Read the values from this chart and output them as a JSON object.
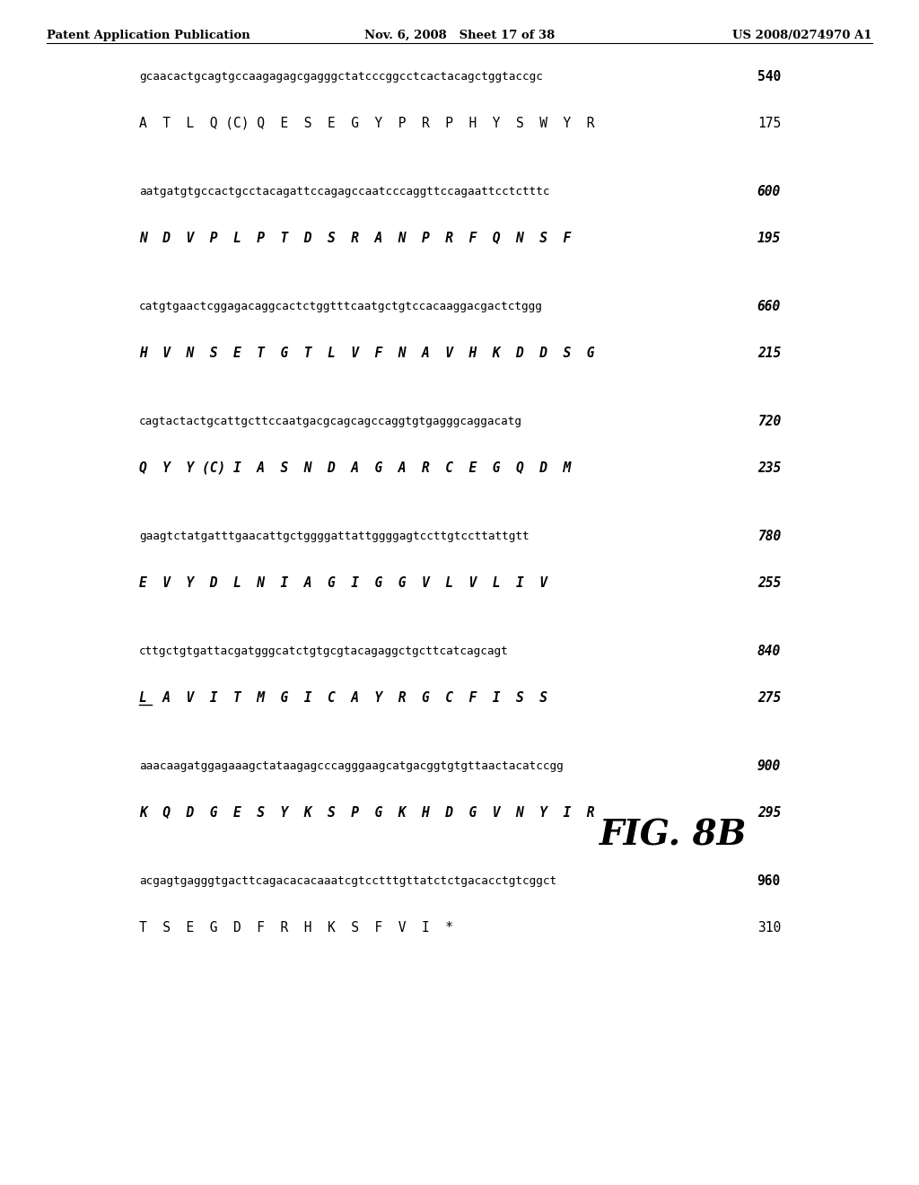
{
  "header_left": "Patent Application Publication",
  "header_mid": "Nov. 6, 2008   Sheet 17 of 38",
  "header_right": "US 2008/0274970 A1",
  "figure_label": "FIG. 8B",
  "bg_color": "#ffffff",
  "lines": [
    {
      "dna": "gcaacactgcagtgccaagagagcgagggctatcccggcctcactacagctggtaccgc",
      "nt_num": "540",
      "aa": "A  T  L  Q (C) Q  E  S  E  G  Y  P  R  P  H  Y  S  W  Y  R",
      "aa_num": "175",
      "aa_bold": false,
      "aa_italic": false,
      "num_bold": false,
      "num_italic": false
    },
    {
      "dna": "aatgatgtgccactgcctacagattccagagccaatcccaggttccagaattcctctttc",
      "nt_num": "600",
      "aa": "N  D  V  P  L  P  T  D  S  R  A  N  P  R  F  Q  N  S  F",
      "aa_num": "195",
      "aa_bold": true,
      "aa_italic": true,
      "num_bold": true,
      "num_italic": true
    },
    {
      "dna": "catgtgaactcggagacaggcactctggtttcaatgctgtccacaaggacgactctggg",
      "nt_num": "660",
      "aa": "H  V  N  S  E  T  G  T  L  V  F  N  A  V  H  K  D  D  S  G",
      "aa_num": "215",
      "aa_bold": true,
      "aa_italic": true,
      "num_bold": true,
      "num_italic": true
    },
    {
      "dna": "cagtactactgcattgcttccaatgacgcagcagccaggtgtgagggcaggacatg",
      "nt_num": "720",
      "aa": "Q  Y  Y (C) I  A  S  N  D  A  G  A  R  C  E  G  Q  D  M",
      "aa_num": "235",
      "aa_bold": true,
      "aa_italic": true,
      "num_bold": true,
      "num_italic": true
    },
    {
      "dna": "gaagtctatgatttgaacattgctggggattattggggagtccttgtccttattgtt",
      "nt_num": "780",
      "aa": "E  V  Y  D  L  N  I  A  G  I  G  G  V  L  V  L  I  V",
      "aa_num": "255",
      "aa_bold": true,
      "aa_italic": true,
      "num_bold": true,
      "num_italic": true
    },
    {
      "dna": "cttgctgtgattacgatgggcatctgtgcgtacagaggctgcttcatcagcagt",
      "nt_num": "840",
      "aa": "L  A  V  I  T  M  G  I  C  A  Y  R  G  C  F  I  S  S",
      "aa_num": "275",
      "aa_bold": true,
      "aa_italic": true,
      "num_bold": true,
      "num_italic": true
    },
    {
      "dna": "aaacaagatggagaaagctataagagcccagggaagcatgacggtgtgttaactacatccgg",
      "nt_num": "900",
      "aa": "K  Q  D  G  E  S  Y  K  S  P  G  K  H  D  G  V  N  Y  I  R",
      "aa_num": "295",
      "aa_bold": true,
      "aa_italic": true,
      "num_bold": true,
      "num_italic": true
    },
    {
      "dna": "acgagtgagggtgacttcagacacacaaatcgtcctttgttatctctgacacctgtcggct",
      "nt_num": "960",
      "aa": "T  S  E  G  D  F  R  H  K  S  F  V  I  *",
      "aa_num": "310",
      "aa_bold": false,
      "aa_italic": false,
      "num_bold": false,
      "num_italic": false
    }
  ],
  "underline_row": 5
}
